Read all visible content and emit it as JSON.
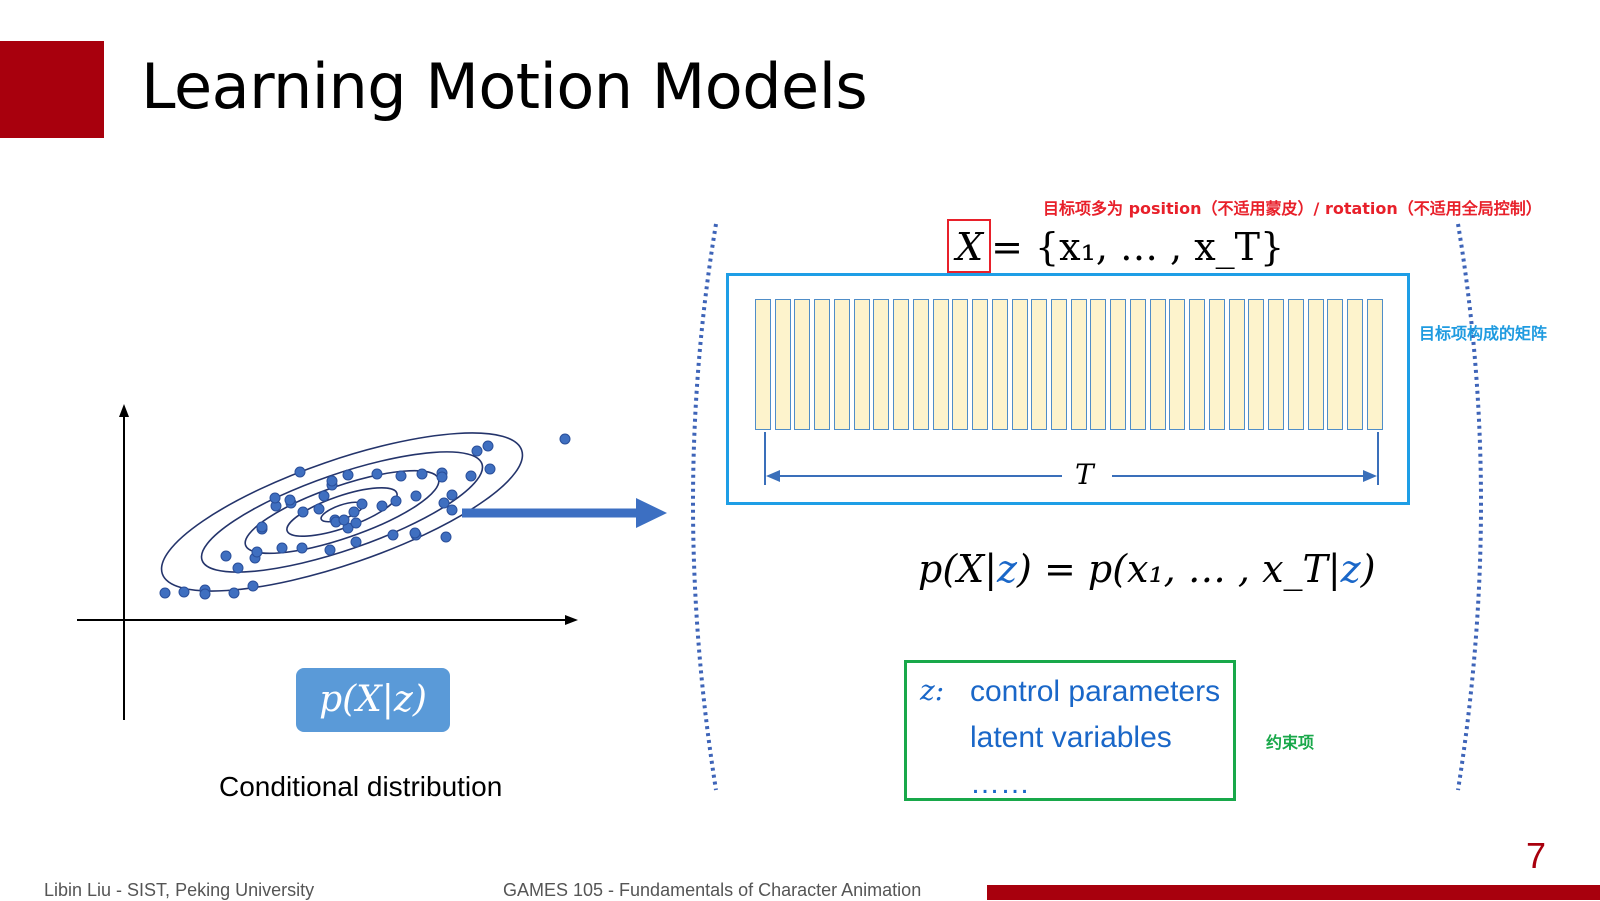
{
  "slide": {
    "title": "Learning Motion Models",
    "page_number": "7",
    "footer_left": "Libin Liu - SIST, Peking University",
    "footer_center": "GAMES 105 - Fundamentals of Character Animation",
    "accent_color": "#a8000d"
  },
  "annotations": {
    "target_note": "目标项多为 position（不适用蒙皮）/ rotation（不适用全局控制）",
    "matrix_note": "目标项构成的矩阵",
    "constraint_note": "约束项"
  },
  "equations": {
    "x_symbol": "X",
    "x_definition": "= {x₁, … , x_T}",
    "sequence_length": "T",
    "cond_left": "p(X|",
    "cond_z1": "z",
    "cond_mid": ") = p(x₁, … , x_T|",
    "cond_z2": "z",
    "cond_right": ")"
  },
  "z_box": {
    "symbol": "z:",
    "items": [
      "control parameters",
      "latent variables",
      "……"
    ]
  },
  "left_panel": {
    "badge": "p(X|z)",
    "caption": "Conditional distribution"
  },
  "frame_count": 32
}
